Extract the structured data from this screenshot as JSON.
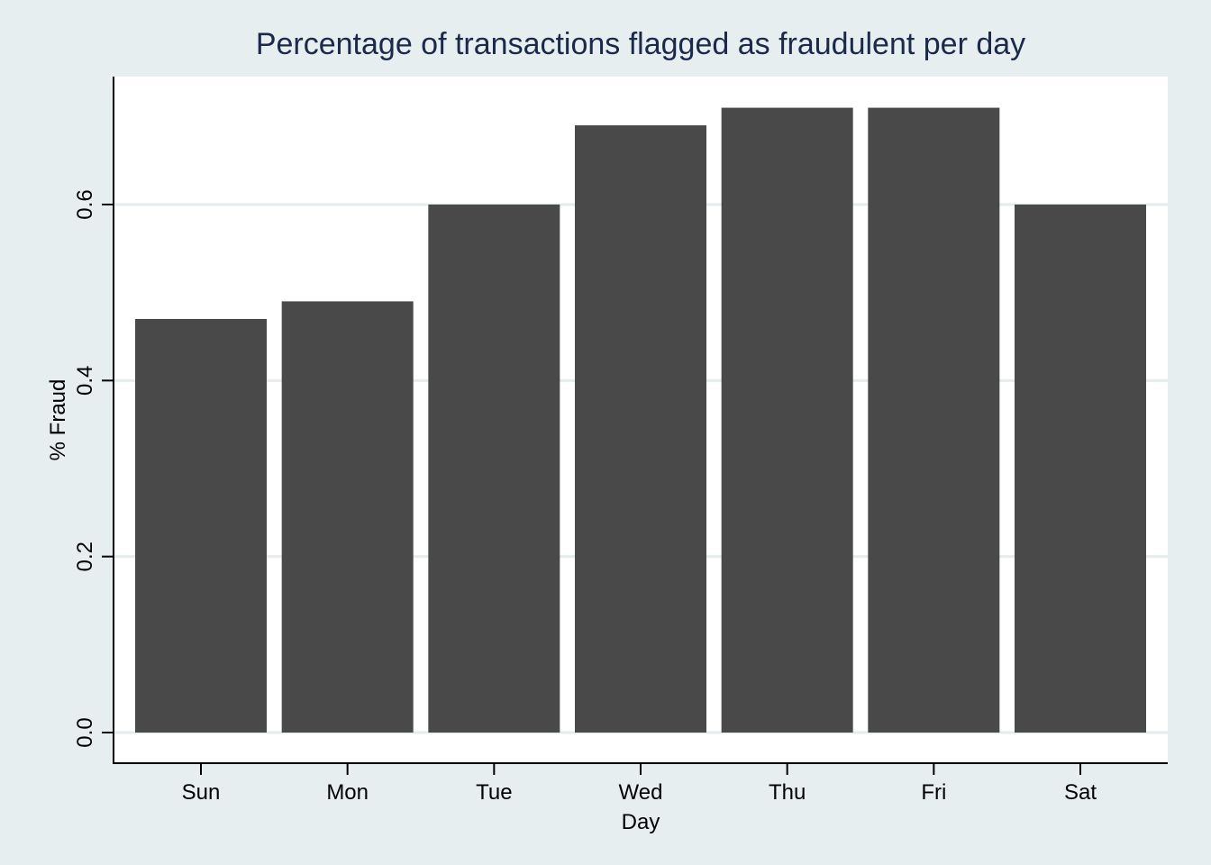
{
  "chart_data": {
    "type": "bar",
    "title": "Percentage of transactions flagged as fraudulent per day",
    "xlabel": "Day",
    "ylabel": "% Fraud",
    "categories": [
      "Sun",
      "Mon",
      "Tue",
      "Wed",
      "Thu",
      "Fri",
      "Sat"
    ],
    "values": [
      0.47,
      0.49,
      0.6,
      0.69,
      0.71,
      0.71,
      0.6
    ],
    "ylim": [
      0,
      0.74
    ],
    "yticks": [
      0.0,
      0.2,
      0.4,
      0.6
    ],
    "ytick_labels": [
      "0.0",
      "0.2",
      "0.4",
      "0.6"
    ],
    "grid": true,
    "legend": "none",
    "colors": {
      "background": "#e6eef0",
      "plot_area": "#ffffff",
      "bar": "#494949",
      "grid": "#e4ecee",
      "title": "#1b2a4a"
    }
  }
}
